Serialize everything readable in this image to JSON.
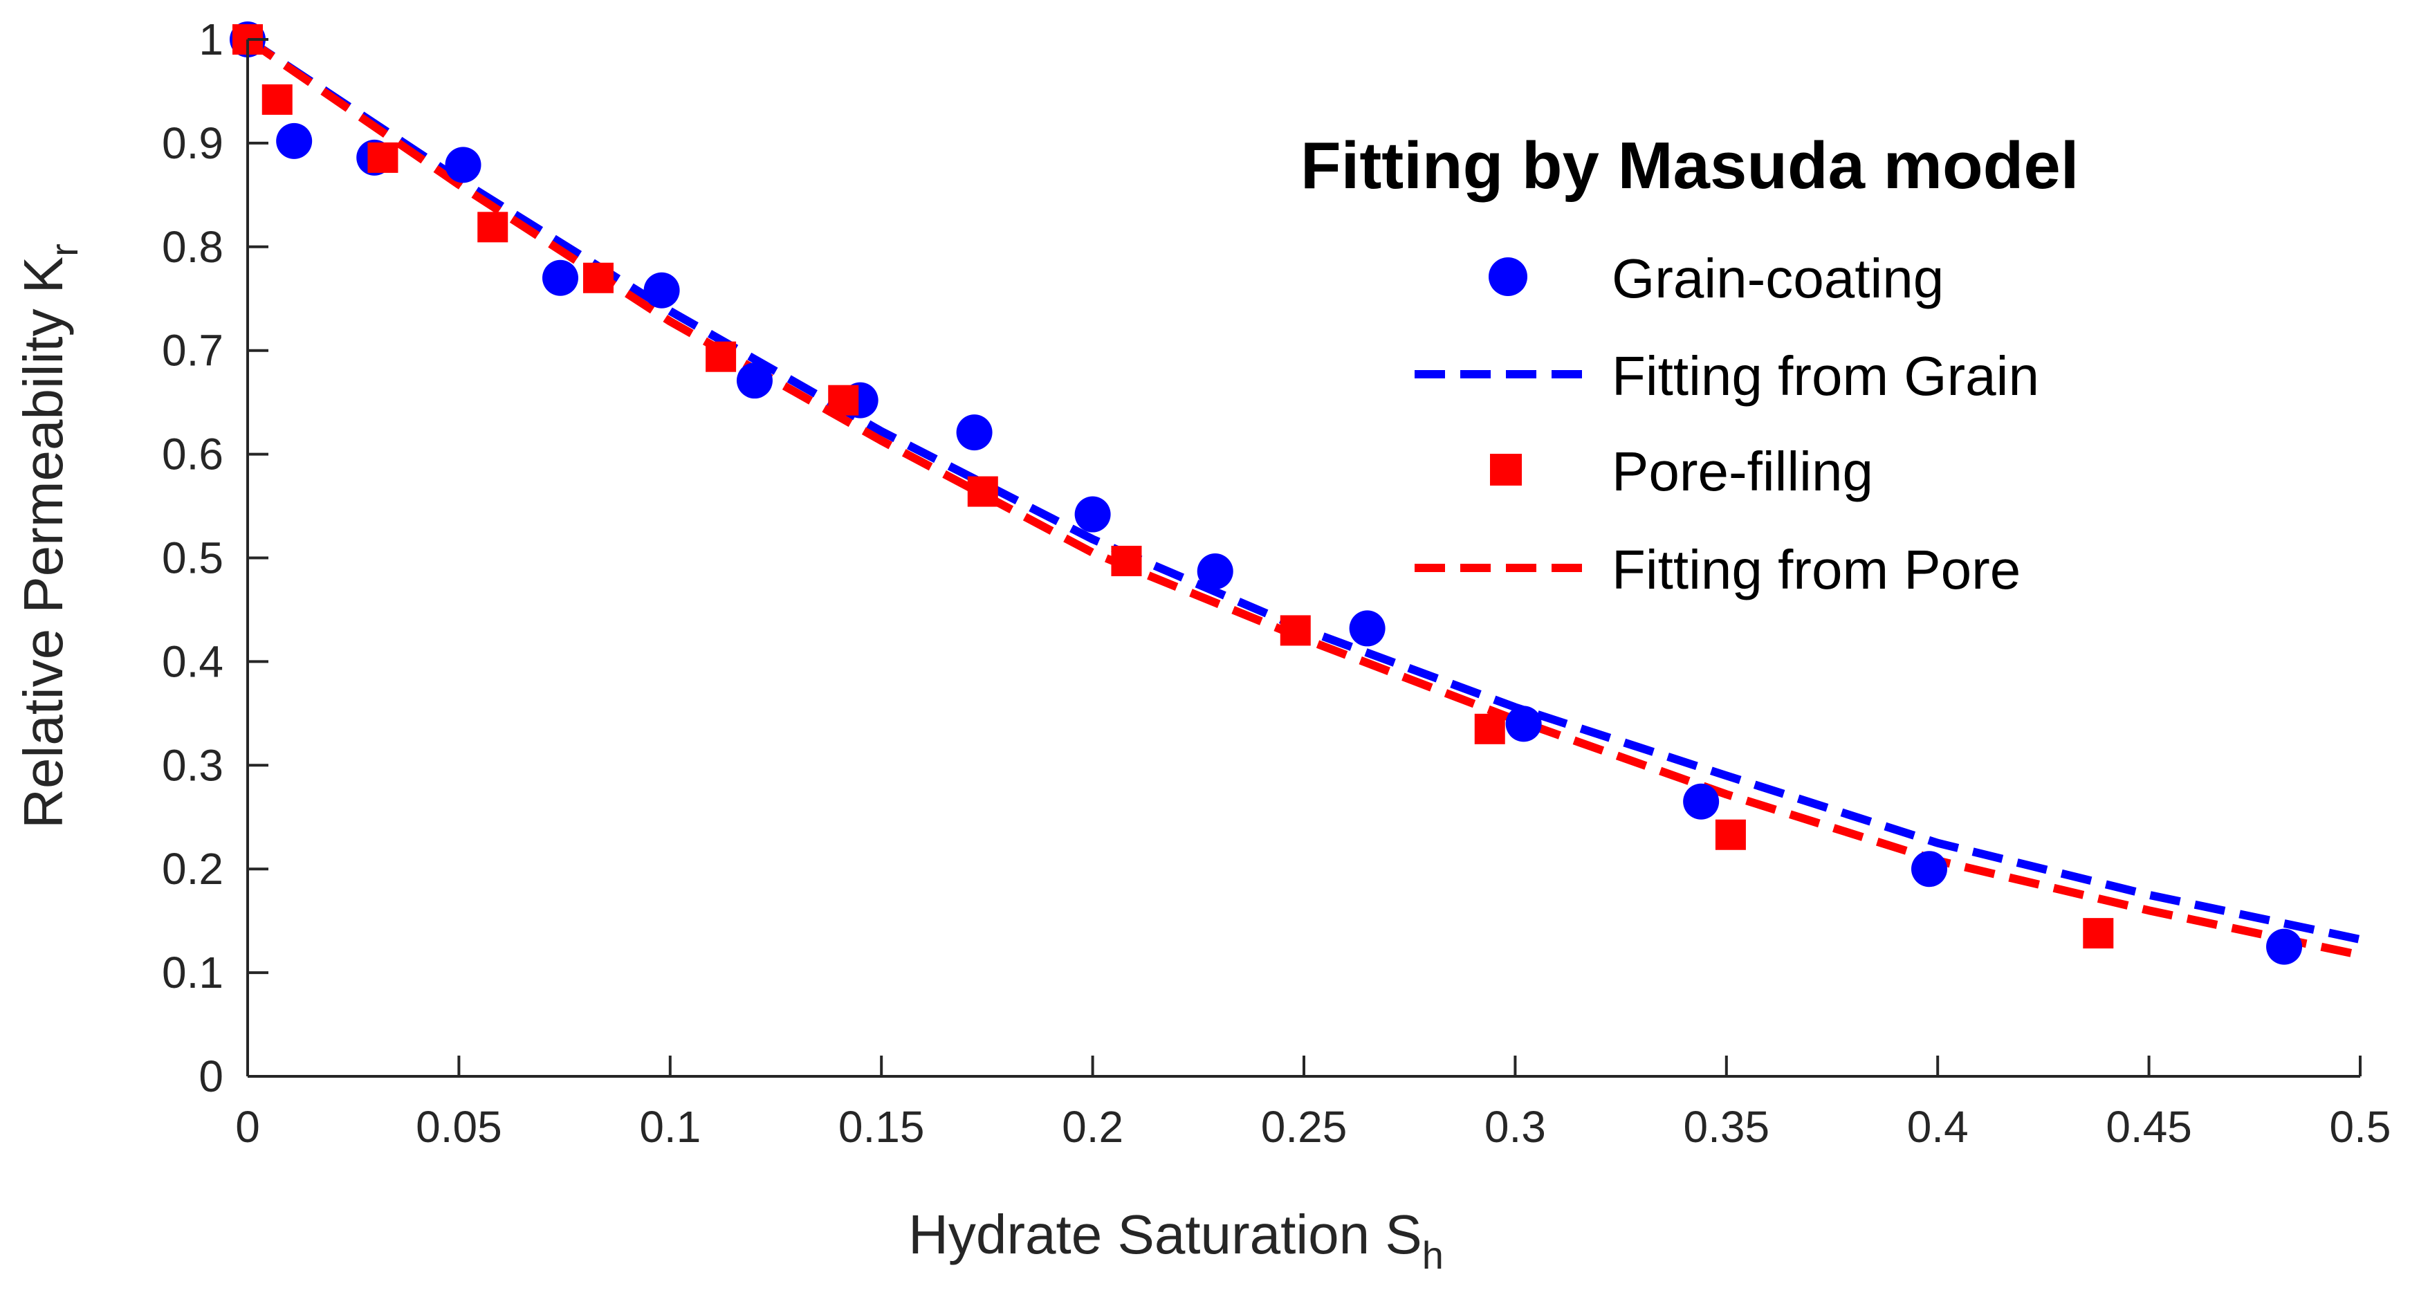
{
  "chart_data": {
    "type": "scatter",
    "legend_title": "Fitting by Masuda model",
    "xlabel": {
      "main": "Hydrate Saturation S",
      "sub": "h"
    },
    "ylabel": {
      "main": "Relative Permeability K",
      "sub": "r"
    },
    "xlim": [
      0,
      0.5
    ],
    "ylim": [
      0,
      1
    ],
    "xticks": [
      "0",
      "0.05",
      "0.1",
      "0.15",
      "0.2",
      "0.25",
      "0.3",
      "0.35",
      "0.4",
      "0.45",
      "0.5"
    ],
    "yticks": [
      "0",
      "0.1",
      "0.2",
      "0.3",
      "0.4",
      "0.5",
      "0.6",
      "0.7",
      "0.8",
      "0.9",
      "1"
    ],
    "grid": false,
    "legend_position": "top-right",
    "series": [
      {
        "name": "Grain-coating",
        "kind": "points",
        "marker": "circle",
        "color": "#0000ff",
        "x": [
          0,
          0.011,
          0.03,
          0.051,
          0.074,
          0.098,
          0.12,
          0.145,
          0.172,
          0.2,
          0.229,
          0.265,
          0.302,
          0.344,
          0.398,
          0.482
        ],
        "y": [
          1.0,
          0.902,
          0.886,
          0.879,
          0.77,
          0.758,
          0.671,
          0.652,
          0.621,
          0.542,
          0.487,
          0.432,
          0.34,
          0.265,
          0.2,
          0.125
        ]
      },
      {
        "name": "Fitting from Grain",
        "kind": "line",
        "dash": true,
        "color": "#0000ff",
        "x": [
          0,
          0.05,
          0.1,
          0.15,
          0.2,
          0.25,
          0.3,
          0.35,
          0.4,
          0.45,
          0.5
        ],
        "y": [
          1.0,
          0.865,
          0.738,
          0.622,
          0.518,
          0.431,
          0.356,
          0.29,
          0.225,
          0.175,
          0.132
        ]
      },
      {
        "name": "Pore-filling",
        "kind": "points",
        "marker": "square",
        "color": "#ff0000",
        "x": [
          0,
          0.007,
          0.032,
          0.058,
          0.083,
          0.112,
          0.141,
          0.174,
          0.208,
          0.248,
          0.294,
          0.351,
          0.438
        ],
        "y": [
          1.0,
          0.942,
          0.886,
          0.819,
          0.77,
          0.694,
          0.652,
          0.564,
          0.497,
          0.43,
          0.335,
          0.233,
          0.138
        ]
      },
      {
        "name": "Fitting from Pore",
        "kind": "line",
        "dash": true,
        "color": "#ff0000",
        "x": [
          0,
          0.05,
          0.1,
          0.15,
          0.2,
          0.25,
          0.3,
          0.35,
          0.4,
          0.45,
          0.5
        ],
        "y": [
          1.0,
          0.86,
          0.728,
          0.613,
          0.505,
          0.422,
          0.344,
          0.272,
          0.208,
          0.16,
          0.117
        ]
      }
    ]
  }
}
